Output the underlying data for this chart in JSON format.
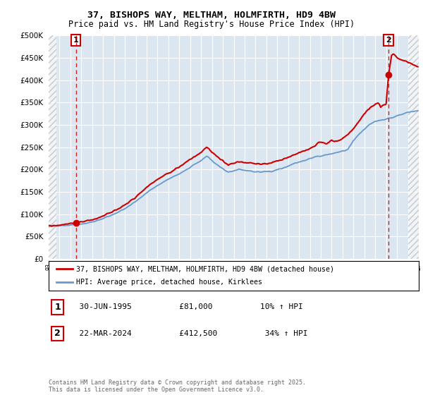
{
  "title_line1": "37, BISHOPS WAY, MELTHAM, HOLMFIRTH, HD9 4BW",
  "title_line2": "Price paid vs. HM Land Registry's House Price Index (HPI)",
  "legend_red": "37, BISHOPS WAY, MELTHAM, HOLMFIRTH, HD9 4BW (detached house)",
  "legend_blue": "HPI: Average price, detached house, Kirklees",
  "annotation1_label": "1",
  "annotation1_date": "30-JUN-1995",
  "annotation1_price": "£81,000",
  "annotation1_hpi": "10% ↑ HPI",
  "annotation2_label": "2",
  "annotation2_date": "22-MAR-2024",
  "annotation2_price": "£412,500",
  "annotation2_hpi": "34% ↑ HPI",
  "footer": "Contains HM Land Registry data © Crown copyright and database right 2025.\nThis data is licensed under the Open Government Licence v3.0.",
  "plot_bg_color": "#dce6f0",
  "red_color": "#cc0000",
  "blue_color": "#6699cc",
  "annotation_box_color": "#cc0000",
  "ylim": [
    0,
    500000
  ],
  "yticks": [
    0,
    50000,
    100000,
    150000,
    200000,
    250000,
    300000,
    350000,
    400000,
    450000,
    500000
  ],
  "sale1_x": 1995.5,
  "sale1_y": 81000,
  "sale2_x": 2024.22,
  "sale2_y": 412500,
  "xmin": 1993,
  "xmax": 2027
}
